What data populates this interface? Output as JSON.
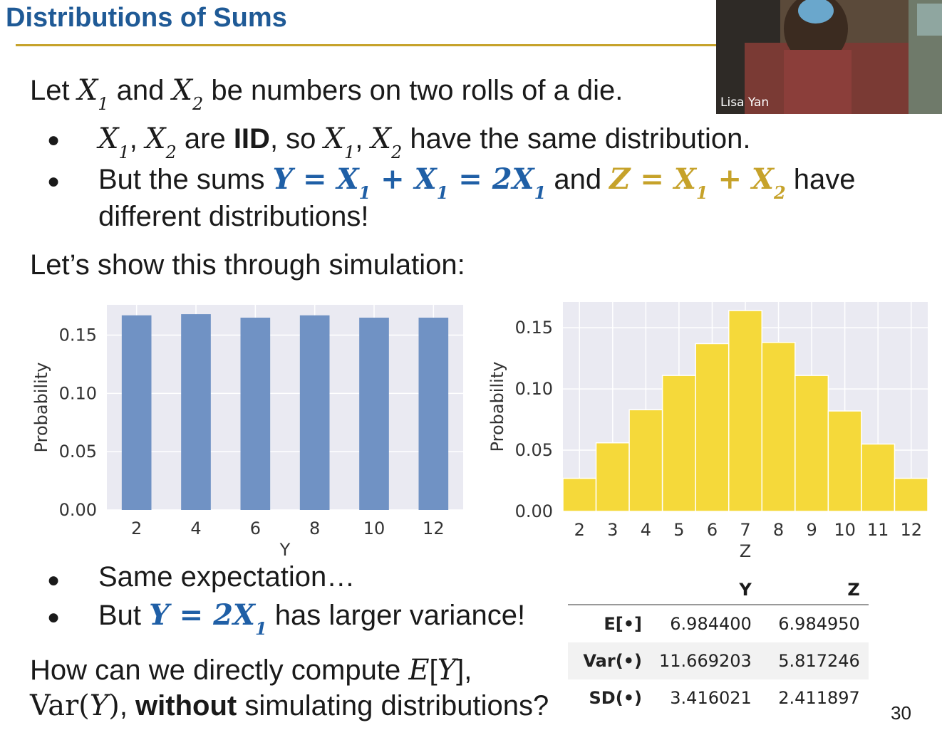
{
  "slide": {
    "title": "Distributions of Sums",
    "page_number": "30",
    "accent_color": "#c6a22a",
    "title_color": "#1f5a96"
  },
  "video": {
    "speaker": "Lisa Yan"
  },
  "text": {
    "intro_a": "Let ",
    "intro_b": " and ",
    "intro_c": " be numbers on two rolls of a die.",
    "b1_a": " are ",
    "b1_iid": "IID",
    "b1_b": ", so ",
    "b1_c": " have the same distribution.",
    "b2_a": "But the sums ",
    "b2_b": " and ",
    "b2_c": " have",
    "b2_d": "different distributions!",
    "sim": "Let’s show this through simulation:",
    "b3": "Same expectation…",
    "b4_a": "But ",
    "b4_b": " has larger variance!",
    "q_a": "How can we directly compute ",
    "q_b": ",",
    "q_c": ", ",
    "q_bold": "without",
    "q_d": " simulating distributions?"
  },
  "chart_data": [
    {
      "type": "bar",
      "categories": [
        "2",
        "4",
        "6",
        "8",
        "10",
        "12"
      ],
      "values": [
        0.167,
        0.168,
        0.165,
        0.167,
        0.165,
        0.165
      ],
      "xlabel": "Y",
      "ylabel": "Probability",
      "yticks": [
        "0.00",
        "0.05",
        "0.10",
        "0.15"
      ],
      "ylim": [
        0,
        0.176
      ],
      "grid": true,
      "color": "#7092c4"
    },
    {
      "type": "bar",
      "categories": [
        "2",
        "3",
        "4",
        "5",
        "6",
        "7",
        "8",
        "9",
        "10",
        "11",
        "12"
      ],
      "values": [
        0.027,
        0.056,
        0.083,
        0.111,
        0.137,
        0.164,
        0.138,
        0.111,
        0.082,
        0.055,
        0.027
      ],
      "xlabel": "Z",
      "ylabel": "Probability",
      "yticks": [
        "0.00",
        "0.05",
        "0.10",
        "0.15"
      ],
      "ylim": [
        0,
        0.171
      ],
      "grid": true,
      "color": "#f5d93a"
    }
  ],
  "stats_table": {
    "columns": [
      "",
      "Y",
      "Z"
    ],
    "rows": [
      [
        "E[•]",
        "6.984400",
        "6.984950"
      ],
      [
        "Var(•)",
        "11.669203",
        "5.817246"
      ],
      [
        "SD(•)",
        "3.416021",
        "2.411897"
      ]
    ]
  }
}
